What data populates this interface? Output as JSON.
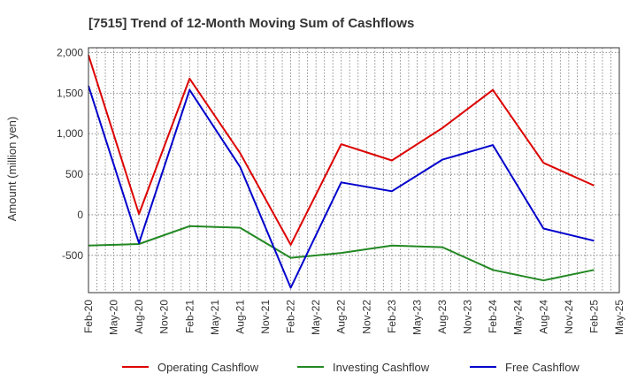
{
  "chart_data": {
    "type": "line",
    "title": "[7515]  Trend of 12-Month Moving Sum of Cashflows",
    "ylabel": "Amount (million yen)",
    "xlabel": "",
    "ylim": [
      -960,
      2060
    ],
    "yticks": [
      -500,
      0,
      500,
      1000,
      1500,
      2000
    ],
    "ytick_labels": [
      "-500",
      "0",
      "500",
      "1,000",
      "1,500",
      "2,000"
    ],
    "categories": [
      "Feb-20",
      "May-20",
      "Aug-20",
      "Nov-20",
      "Feb-21",
      "May-21",
      "Aug-21",
      "Nov-21",
      "Feb-22",
      "May-22",
      "Aug-22",
      "Nov-22",
      "Feb-23",
      "May-23",
      "Aug-23",
      "Nov-23",
      "Feb-24",
      "May-24",
      "Aug-24",
      "Nov-24",
      "Feb-25",
      "May-25"
    ],
    "grid": true,
    "legend_position": "bottom",
    "series": [
      {
        "name": "Operating Cashflow",
        "color": "#dd0000",
        "points": [
          [
            "Feb-20",
            1970
          ],
          [
            "Aug-20",
            10
          ],
          [
            "Feb-21",
            1680
          ],
          [
            "Aug-21",
            760
          ],
          [
            "Feb-22",
            -370
          ],
          [
            "Aug-22",
            870
          ],
          [
            "Feb-23",
            670
          ],
          [
            "Aug-23",
            1070
          ],
          [
            "Feb-24",
            1540
          ],
          [
            "Aug-24",
            640
          ],
          [
            "Feb-25",
            360
          ]
        ]
      },
      {
        "name": "Investing Cashflow",
        "color": "#228822",
        "points": [
          [
            "Feb-20",
            -380
          ],
          [
            "Aug-20",
            -360
          ],
          [
            "Feb-21",
            -140
          ],
          [
            "Aug-21",
            -160
          ],
          [
            "Feb-22",
            -530
          ],
          [
            "Aug-22",
            -470
          ],
          [
            "Feb-23",
            -380
          ],
          [
            "Aug-23",
            -400
          ],
          [
            "Feb-24",
            -680
          ],
          [
            "Aug-24",
            -810
          ],
          [
            "Feb-25",
            -680
          ]
        ]
      },
      {
        "name": "Free Cashflow",
        "color": "#0000cc",
        "points": [
          [
            "Feb-20",
            1590
          ],
          [
            "Aug-20",
            -350
          ],
          [
            "Feb-21",
            1540
          ],
          [
            "Aug-21",
            590
          ],
          [
            "Feb-22",
            -900
          ],
          [
            "Aug-22",
            400
          ],
          [
            "Feb-23",
            290
          ],
          [
            "Aug-23",
            680
          ],
          [
            "Feb-24",
            860
          ],
          [
            "Aug-24",
            -170
          ],
          [
            "Feb-25",
            -320
          ]
        ]
      }
    ]
  }
}
